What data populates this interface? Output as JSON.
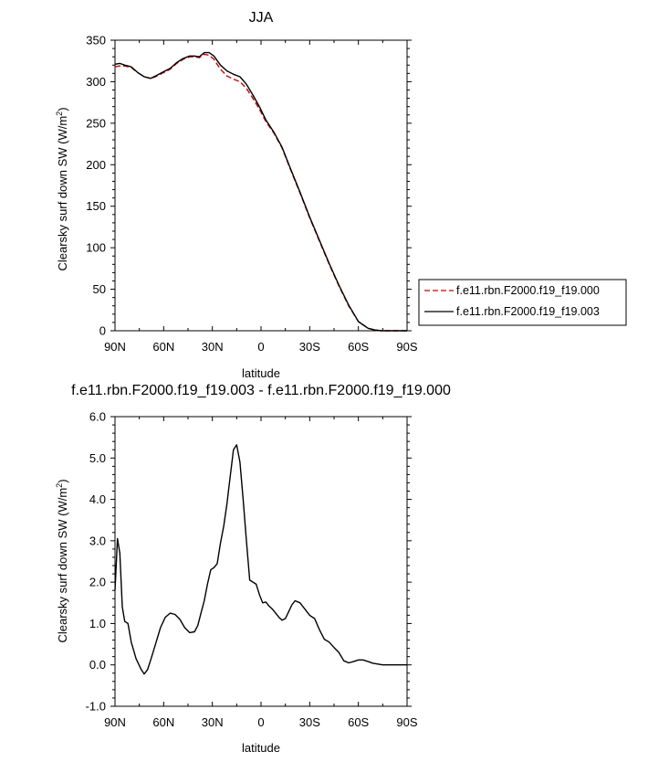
{
  "chart_data": [
    {
      "type": "line",
      "title": "JJA",
      "xlabel": "latitude",
      "ylabel": "Clearsky surf down SW (W/m",
      "ylabel_sup": "2",
      "ylabel_close": ")",
      "xlim": [
        90,
        -90
      ],
      "ylim": [
        0,
        350
      ],
      "xticks": [
        90,
        60,
        30,
        0,
        -30,
        -60,
        -90
      ],
      "xtick_labels": [
        "90N",
        "60N",
        "30N",
        "0",
        "30S",
        "60S",
        "90S"
      ],
      "yticks": [
        0,
        50,
        100,
        150,
        200,
        250,
        300,
        350
      ],
      "ytick_labels": [
        "0",
        "50",
        "100",
        "150",
        "200",
        "250",
        "300",
        "350"
      ],
      "legend_position": "right",
      "series": [
        {
          "name": "f.e11.rbn.F2000.f19_f19.000",
          "color": "#cc0000",
          "dash": "dashed",
          "x": [
            90,
            87,
            84,
            80,
            76,
            72,
            68,
            65,
            61,
            56,
            52,
            48,
            44,
            41,
            38,
            35,
            32,
            29,
            25,
            21,
            17,
            13,
            9,
            5,
            1,
            -3,
            -8,
            -13,
            -18,
            -24,
            -30,
            -36,
            -42,
            -48,
            -54,
            -60,
            -66,
            -70,
            -74,
            -78,
            -82,
            -86,
            -90
          ],
          "y": [
            318,
            319,
            319,
            317,
            311,
            306,
            304,
            306,
            310,
            315,
            322,
            327,
            330,
            330,
            329,
            333,
            332,
            327,
            315,
            307,
            303,
            300,
            292,
            280,
            267,
            252,
            238,
            220,
            195,
            166,
            136,
            108,
            80,
            54,
            30,
            11,
            3,
            1,
            0,
            0,
            0,
            0,
            0
          ]
        },
        {
          "name": "f.e11.rbn.F2000.f19_f19.003",
          "color": "#000000",
          "dash": "solid",
          "x": [
            90,
            87,
            84,
            80,
            76,
            72,
            68,
            65,
            61,
            56,
            52,
            48,
            44,
            41,
            38,
            35,
            32,
            29,
            25,
            21,
            17,
            13,
            9,
            5,
            1,
            -3,
            -8,
            -13,
            -18,
            -24,
            -30,
            -36,
            -42,
            -48,
            -54,
            -60,
            -66,
            -70,
            -74,
            -78,
            -82,
            -86,
            -90
          ],
          "y": [
            321,
            322,
            320,
            318,
            311,
            306,
            304,
            307,
            311,
            316,
            323,
            328,
            331,
            331,
            330,
            335,
            335,
            331,
            320,
            313,
            309,
            306,
            297,
            284,
            270,
            254,
            239,
            221,
            196,
            167,
            137,
            109,
            81,
            55,
            31,
            11,
            3,
            1,
            0,
            0,
            0,
            0,
            0
          ]
        }
      ]
    },
    {
      "type": "line",
      "title": "f.e11.rbn.F2000.f19_f19.003 - f.e11.rbn.F2000.f19_f19.000",
      "xlabel": "latitude",
      "ylabel": "Clearsky surf down SW (W/m",
      "ylabel_sup": "2",
      "ylabel_close": ")",
      "xlim": [
        90,
        -90
      ],
      "ylim": [
        -1.0,
        6.0
      ],
      "xticks": [
        90,
        60,
        30,
        0,
        -30,
        -60,
        -90
      ],
      "xtick_labels": [
        "90N",
        "60N",
        "30N",
        "0",
        "30S",
        "60S",
        "90S"
      ],
      "yticks": [
        -1.0,
        0.0,
        1.0,
        2.0,
        3.0,
        4.0,
        5.0,
        6.0
      ],
      "ytick_labels": [
        "-1.0",
        "0.0",
        "1.0",
        "2.0",
        "3.0",
        "4.0",
        "5.0",
        "6.0"
      ],
      "series": [
        {
          "color": "#000000",
          "x": [
            90,
            88.5,
            87,
            85.5,
            84,
            82,
            80,
            77,
            74,
            72,
            70,
            68,
            65,
            62,
            59,
            56,
            53,
            50,
            47,
            44,
            41,
            39,
            37,
            35,
            33,
            31,
            29,
            27,
            25,
            23,
            21,
            19,
            17,
            15,
            13,
            11,
            9,
            7,
            5,
            3,
            1,
            -1,
            -3,
            -5,
            -7,
            -9,
            -11,
            -13,
            -15,
            -17,
            -19,
            -21,
            -24,
            -27,
            -30,
            -33,
            -36,
            -39,
            -42,
            -45,
            -48,
            -51,
            -54,
            -57,
            -60,
            -63,
            -66,
            -69,
            -72,
            -75,
            -78,
            -81,
            -84,
            -87,
            -90
          ],
          "y": [
            1.8,
            3.05,
            2.7,
            1.4,
            1.05,
            1.0,
            0.55,
            0.15,
            -0.1,
            -0.22,
            -0.12,
            0.12,
            0.5,
            0.9,
            1.15,
            1.25,
            1.22,
            1.1,
            0.9,
            0.78,
            0.8,
            0.95,
            1.25,
            1.55,
            1.95,
            2.3,
            2.35,
            2.45,
            2.95,
            3.35,
            3.9,
            4.55,
            5.2,
            5.32,
            4.9,
            4.0,
            3.0,
            2.05,
            2.0,
            1.95,
            1.7,
            1.5,
            1.52,
            1.42,
            1.35,
            1.25,
            1.15,
            1.08,
            1.12,
            1.28,
            1.45,
            1.55,
            1.5,
            1.35,
            1.2,
            1.12,
            0.85,
            0.62,
            0.55,
            0.42,
            0.3,
            0.1,
            0.05,
            0.08,
            0.12,
            0.12,
            0.08,
            0.04,
            0.02,
            0.0,
            0.0,
            0.0,
            0.0,
            0.0,
            0.0
          ]
        }
      ]
    }
  ]
}
